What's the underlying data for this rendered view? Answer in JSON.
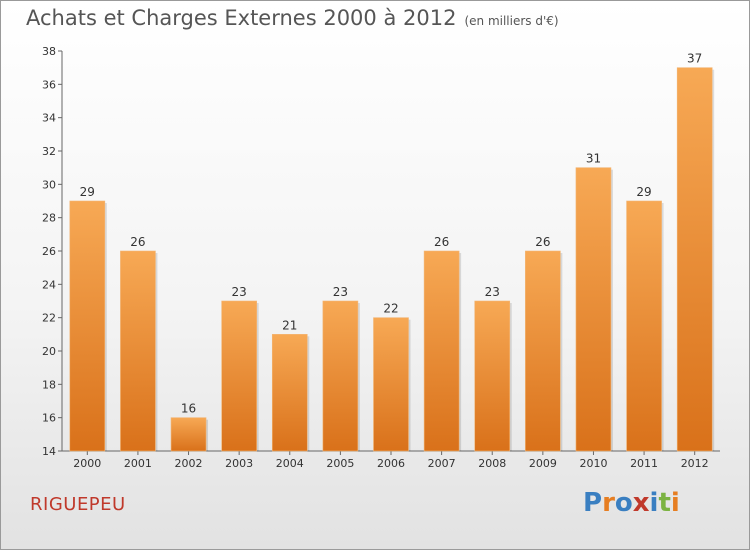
{
  "header": {
    "title": "Achats et Charges Externes 2000 à 2012",
    "subtitle": "(en milliers d'€)"
  },
  "footer": {
    "place": "RIGUEPEU",
    "logo": "Proxiti",
    "logo_colors": [
      "#3a7fc1",
      "#e67e22",
      "#3a7fc1",
      "#c0392b",
      "#3a7fc1",
      "#7cb342",
      "#e67e22"
    ]
  },
  "chart_data": {
    "type": "bar",
    "title": "Achats et Charges Externes 2000 à 2012",
    "subtitle": "(en milliers d'€)",
    "categories": [
      "2000",
      "2001",
      "2002",
      "2003",
      "2004",
      "2005",
      "2006",
      "2007",
      "2008",
      "2009",
      "2010",
      "2011",
      "2012"
    ],
    "values": [
      29,
      26,
      16,
      23,
      21,
      23,
      22,
      26,
      23,
      26,
      31,
      29,
      37
    ],
    "ylim": [
      14,
      38
    ],
    "yticks": [
      14,
      16,
      18,
      20,
      22,
      24,
      26,
      28,
      30,
      32,
      34,
      36,
      38
    ],
    "grid": false,
    "bar_color_top": "#f7a955",
    "bar_color_bottom": "#d9711a"
  }
}
